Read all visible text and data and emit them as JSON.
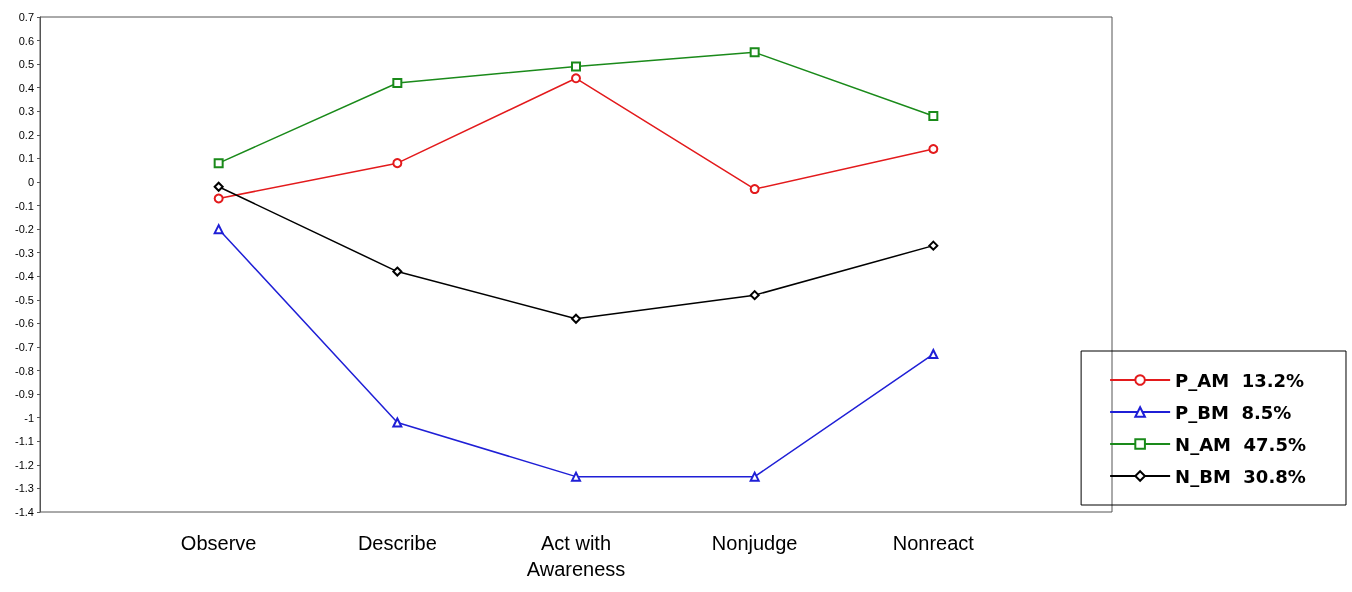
{
  "chart_data": {
    "type": "line",
    "categories": [
      "Observe",
      "Describe",
      "Act with\nAwareness",
      "Nonjudge",
      "Nonreact"
    ],
    "series": [
      {
        "name": "P_AM  13.2%",
        "color": "#e31a1c",
        "marker": "circle",
        "values": [
          -0.07,
          0.08,
          0.44,
          -0.03,
          0.14
        ]
      },
      {
        "name": "P_BM  8.5%",
        "color": "#1f1fd6",
        "marker": "triangle",
        "values": [
          -0.2,
          -1.02,
          -1.25,
          -1.25,
          -0.73
        ]
      },
      {
        "name": "N_AM  47.5%",
        "color": "#1a8a1a",
        "marker": "square",
        "values": [
          0.08,
          0.42,
          0.49,
          0.55,
          0.28
        ]
      },
      {
        "name": "N_BM  30.8%",
        "color": "#000000",
        "marker": "diamond",
        "values": [
          -0.02,
          -0.38,
          -0.58,
          -0.48,
          -0.27
        ]
      }
    ],
    "ylim": [
      -1.4,
      0.7
    ],
    "yticks": [
      -1.4,
      -1.3,
      -1.2,
      -1.1,
      -1,
      -0.9,
      -0.8,
      -0.7,
      -0.6,
      -0.5,
      -0.4,
      -0.3,
      -0.2,
      -0.1,
      0,
      0.1,
      0.2,
      0.3,
      0.4,
      0.5,
      0.6,
      0.7
    ],
    "grid": false,
    "legend": "bottom right",
    "line_style": "solid"
  }
}
